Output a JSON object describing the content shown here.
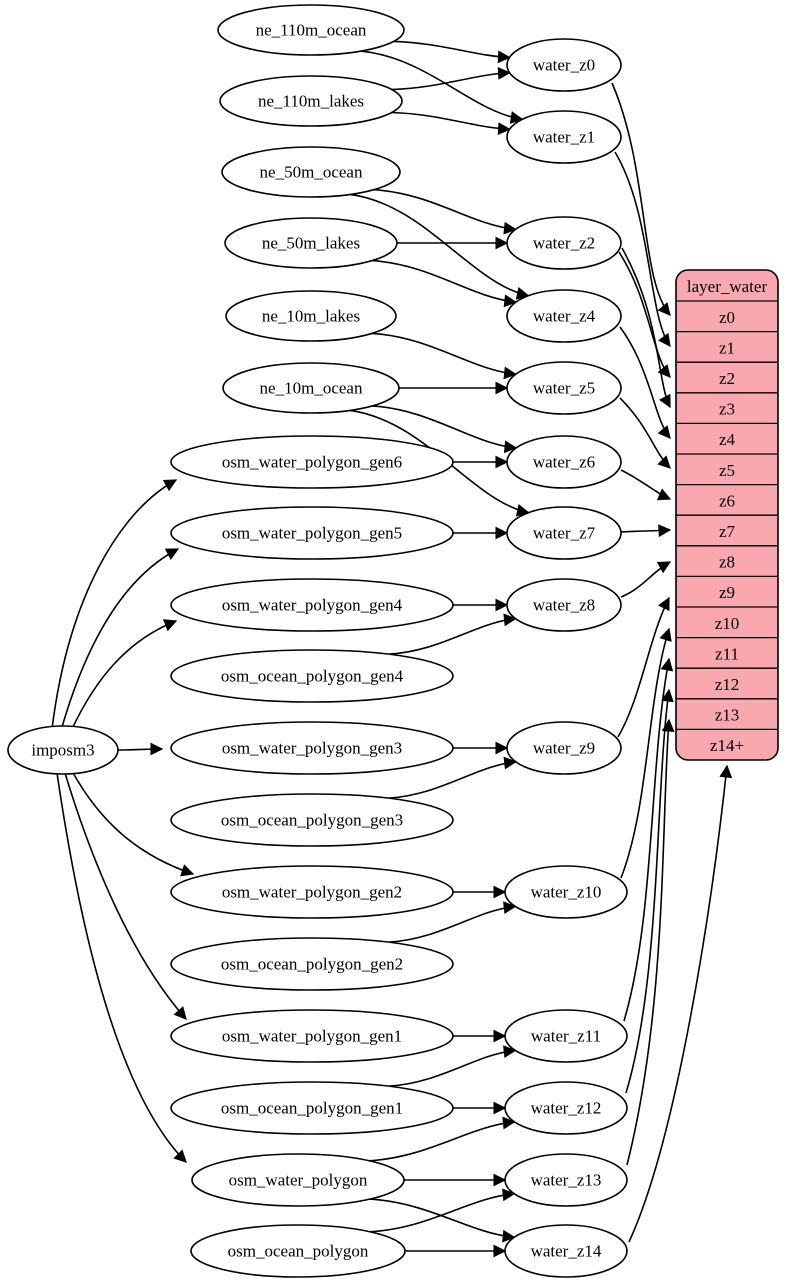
{
  "diagram": {
    "colors": {
      "background": "#ffffff",
      "node_fill": "#ffffff",
      "node_stroke": "#000000",
      "edge_color": "#000000",
      "record_fill": "#faa8b0",
      "record_stroke": "#000000",
      "text_color": "#000000"
    },
    "nodes": [
      {
        "id": "imposm3",
        "label": "imposm3",
        "group": "tool"
      },
      {
        "id": "ne_110m_ocean",
        "label": "ne_110m_ocean",
        "group": "source"
      },
      {
        "id": "ne_110m_lakes",
        "label": "ne_110m_lakes",
        "group": "source"
      },
      {
        "id": "ne_50m_ocean",
        "label": "ne_50m_ocean",
        "group": "source"
      },
      {
        "id": "ne_50m_lakes",
        "label": "ne_50m_lakes",
        "group": "source"
      },
      {
        "id": "ne_10m_lakes",
        "label": "ne_10m_lakes",
        "group": "source"
      },
      {
        "id": "ne_10m_ocean",
        "label": "ne_10m_ocean",
        "group": "source"
      },
      {
        "id": "osm_water_polygon_gen6",
        "label": "osm_water_polygon_gen6",
        "group": "source"
      },
      {
        "id": "osm_water_polygon_gen5",
        "label": "osm_water_polygon_gen5",
        "group": "source"
      },
      {
        "id": "osm_water_polygon_gen4",
        "label": "osm_water_polygon_gen4",
        "group": "source"
      },
      {
        "id": "osm_ocean_polygon_gen4",
        "label": "osm_ocean_polygon_gen4",
        "group": "source"
      },
      {
        "id": "osm_water_polygon_gen3",
        "label": "osm_water_polygon_gen3",
        "group": "source"
      },
      {
        "id": "osm_ocean_polygon_gen3",
        "label": "osm_ocean_polygon_gen3",
        "group": "source"
      },
      {
        "id": "osm_water_polygon_gen2",
        "label": "osm_water_polygon_gen2",
        "group": "source"
      },
      {
        "id": "osm_ocean_polygon_gen2",
        "label": "osm_ocean_polygon_gen2",
        "group": "source"
      },
      {
        "id": "osm_water_polygon_gen1",
        "label": "osm_water_polygon_gen1",
        "group": "source"
      },
      {
        "id": "osm_ocean_polygon_gen1",
        "label": "osm_ocean_polygon_gen1",
        "group": "source"
      },
      {
        "id": "osm_water_polygon",
        "label": "osm_water_polygon",
        "group": "source"
      },
      {
        "id": "osm_ocean_polygon",
        "label": "osm_ocean_polygon",
        "group": "source"
      },
      {
        "id": "water_z0",
        "label": "water_z0",
        "group": "intermediate"
      },
      {
        "id": "water_z1",
        "label": "water_z1",
        "group": "intermediate"
      },
      {
        "id": "water_z2",
        "label": "water_z2",
        "group": "intermediate"
      },
      {
        "id": "water_z4",
        "label": "water_z4",
        "group": "intermediate"
      },
      {
        "id": "water_z5",
        "label": "water_z5",
        "group": "intermediate"
      },
      {
        "id": "water_z6",
        "label": "water_z6",
        "group": "intermediate"
      },
      {
        "id": "water_z7",
        "label": "water_z7",
        "group": "intermediate"
      },
      {
        "id": "water_z8",
        "label": "water_z8",
        "group": "intermediate"
      },
      {
        "id": "water_z9",
        "label": "water_z9",
        "group": "intermediate"
      },
      {
        "id": "water_z10",
        "label": "water_z10",
        "group": "intermediate"
      },
      {
        "id": "water_z11",
        "label": "water_z11",
        "group": "intermediate"
      },
      {
        "id": "water_z12",
        "label": "water_z12",
        "group": "intermediate"
      },
      {
        "id": "water_z13",
        "label": "water_z13",
        "group": "intermediate"
      },
      {
        "id": "water_z14",
        "label": "water_z14",
        "group": "intermediate"
      }
    ],
    "record": {
      "id": "layer_water",
      "title": "layer_water",
      "rows": [
        "z0",
        "z1",
        "z2",
        "z3",
        "z4",
        "z5",
        "z6",
        "z7",
        "z8",
        "z9",
        "z10",
        "z11",
        "z12",
        "z13",
        "z14+"
      ]
    },
    "edges": [
      {
        "from": "imposm3",
        "to": "osm_water_polygon_gen6"
      },
      {
        "from": "imposm3",
        "to": "osm_water_polygon_gen5"
      },
      {
        "from": "imposm3",
        "to": "osm_water_polygon_gen4"
      },
      {
        "from": "imposm3",
        "to": "osm_water_polygon_gen3"
      },
      {
        "from": "imposm3",
        "to": "osm_water_polygon_gen2"
      },
      {
        "from": "imposm3",
        "to": "osm_water_polygon_gen1"
      },
      {
        "from": "imposm3",
        "to": "osm_water_polygon"
      },
      {
        "from": "ne_110m_ocean",
        "to": "water_z0"
      },
      {
        "from": "ne_110m_ocean",
        "to": "water_z1"
      },
      {
        "from": "ne_110m_lakes",
        "to": "water_z0"
      },
      {
        "from": "ne_110m_lakes",
        "to": "water_z1"
      },
      {
        "from": "ne_50m_ocean",
        "to": "water_z2"
      },
      {
        "from": "ne_50m_ocean",
        "to": "water_z4"
      },
      {
        "from": "ne_50m_lakes",
        "to": "water_z2"
      },
      {
        "from": "ne_50m_lakes",
        "to": "water_z4"
      },
      {
        "from": "ne_10m_lakes",
        "to": "water_z5"
      },
      {
        "from": "ne_10m_ocean",
        "to": "water_z5"
      },
      {
        "from": "ne_10m_ocean",
        "to": "water_z6"
      },
      {
        "from": "ne_10m_ocean",
        "to": "water_z7"
      },
      {
        "from": "osm_water_polygon_gen6",
        "to": "water_z6"
      },
      {
        "from": "osm_water_polygon_gen5",
        "to": "water_z7"
      },
      {
        "from": "osm_water_polygon_gen4",
        "to": "water_z8"
      },
      {
        "from": "osm_ocean_polygon_gen4",
        "to": "water_z8"
      },
      {
        "from": "osm_water_polygon_gen3",
        "to": "water_z9"
      },
      {
        "from": "osm_ocean_polygon_gen3",
        "to": "water_z9"
      },
      {
        "from": "osm_water_polygon_gen2",
        "to": "water_z10"
      },
      {
        "from": "osm_ocean_polygon_gen2",
        "to": "water_z10"
      },
      {
        "from": "osm_water_polygon_gen1",
        "to": "water_z11"
      },
      {
        "from": "osm_ocean_polygon_gen1",
        "to": "water_z11"
      },
      {
        "from": "osm_ocean_polygon_gen1",
        "to": "water_z12"
      },
      {
        "from": "osm_water_polygon",
        "to": "water_z12"
      },
      {
        "from": "osm_water_polygon",
        "to": "water_z13"
      },
      {
        "from": "osm_water_polygon",
        "to": "water_z14"
      },
      {
        "from": "osm_ocean_polygon",
        "to": "water_z13"
      },
      {
        "from": "osm_ocean_polygon",
        "to": "water_z14"
      },
      {
        "from": "water_z0",
        "to": "layer_water:z0"
      },
      {
        "from": "water_z1",
        "to": "layer_water:z1"
      },
      {
        "from": "water_z2",
        "to": "layer_water:z2"
      },
      {
        "from": "water_z2",
        "to": "layer_water:z3"
      },
      {
        "from": "water_z4",
        "to": "layer_water:z4"
      },
      {
        "from": "water_z5",
        "to": "layer_water:z5"
      },
      {
        "from": "water_z6",
        "to": "layer_water:z6"
      },
      {
        "from": "water_z7",
        "to": "layer_water:z7"
      },
      {
        "from": "water_z8",
        "to": "layer_water:z8"
      },
      {
        "from": "water_z9",
        "to": "layer_water:z9"
      },
      {
        "from": "water_z10",
        "to": "layer_water:z10"
      },
      {
        "from": "water_z11",
        "to": "layer_water:z11"
      },
      {
        "from": "water_z12",
        "to": "layer_water:z12"
      },
      {
        "from": "water_z13",
        "to": "layer_water:z13"
      },
      {
        "from": "water_z14",
        "to": "layer_water:z14+"
      }
    ]
  }
}
